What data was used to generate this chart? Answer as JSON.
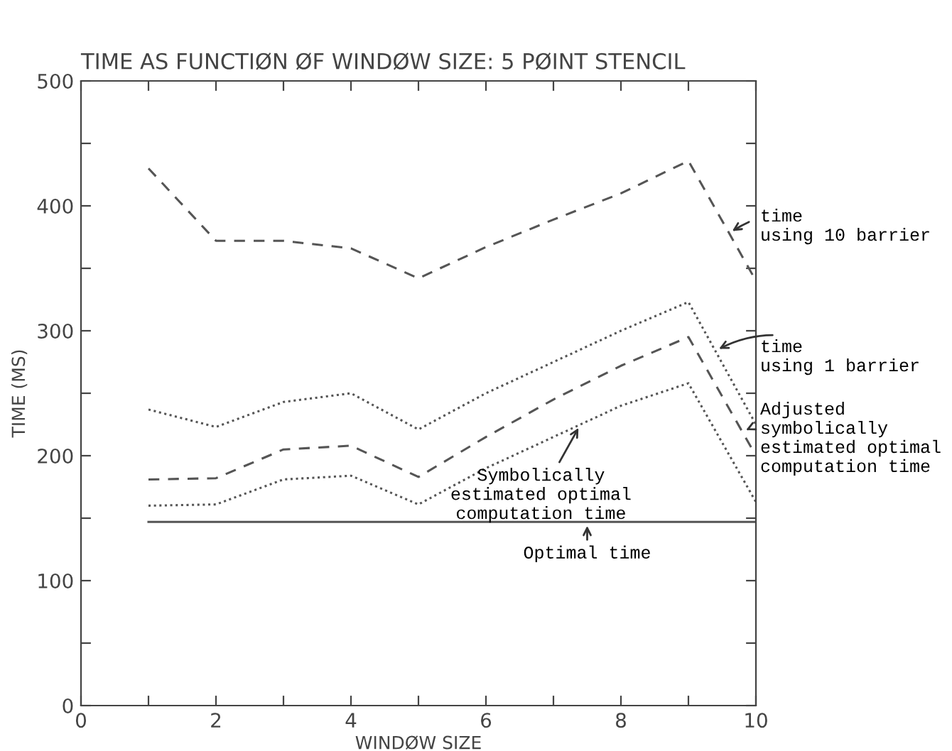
{
  "chart_data": {
    "type": "line",
    "title": "TIME AS FUNCTIØN ØF WINDØW SIZE: 5 PØINT STENCIL",
    "xlabel": "WINDØW SIZE",
    "ylabel": "TIME (MS)",
    "x": [
      1,
      2,
      3,
      4,
      5,
      6,
      7,
      8,
      9,
      10
    ],
    "series": [
      {
        "color": "#555555",
        "line_style": "dashed",
        "values": [
          430,
          372,
          372,
          366,
          342,
          367,
          389,
          410,
          436,
          340
        ]
      },
      {
        "color": "#555555",
        "line_style": "dotted",
        "values": [
          237,
          223,
          243,
          250,
          221,
          250,
          275,
          300,
          323,
          225
        ]
      },
      {
        "color": "#555555",
        "line_style": "dashed",
        "values": [
          181,
          182,
          205,
          208,
          183,
          215,
          245,
          272,
          295,
          200
        ]
      },
      {
        "color": "#555555",
        "line_style": "dotted",
        "values": [
          160,
          161,
          181,
          184,
          161,
          190,
          215,
          240,
          258,
          163
        ]
      },
      {
        "color": "#555555",
        "line_style": "solid",
        "values": [
          147,
          147,
          147,
          147,
          147,
          147,
          147,
          147,
          147,
          147
        ]
      }
    ],
    "xlim": [
      0,
      10
    ],
    "ylim": [
      0,
      500
    ],
    "xticks": [
      0,
      {
        "value": 1,
        "label": null
      },
      2,
      {
        "value": 3,
        "label": null
      },
      4,
      {
        "value": 5,
        "label": null
      },
      6,
      {
        "value": 7,
        "label": null
      },
      8,
      {
        "value": 9,
        "label": null
      },
      10
    ],
    "yticks": [
      0,
      {
        "value": 50,
        "label": null
      },
      100,
      {
        "value": 150,
        "label": null
      },
      200,
      {
        "value": 250,
        "label": null
      },
      300,
      {
        "value": 350,
        "label": null
      },
      400,
      {
        "value": 450,
        "label": null
      },
      500
    ],
    "annotations": [
      {
        "text": "time\nusing 10 barrier",
        "x": 9.6,
        "y": 378
      },
      {
        "text": "time\nusing 1 barrier",
        "x": 9.4,
        "y": 284
      },
      {
        "text": "Adjusted\nsymbolically\nestimated optimal\ncomputation time",
        "x": 9.8,
        "y": 219
      },
      {
        "text": "Symbolically\nestimated optimal\ncomputation time",
        "x": 7.4,
        "y": 225
      },
      {
        "text": "Optimal time",
        "x": 7.5,
        "y": 147
      }
    ],
    "grid": false,
    "marker": "none"
  }
}
